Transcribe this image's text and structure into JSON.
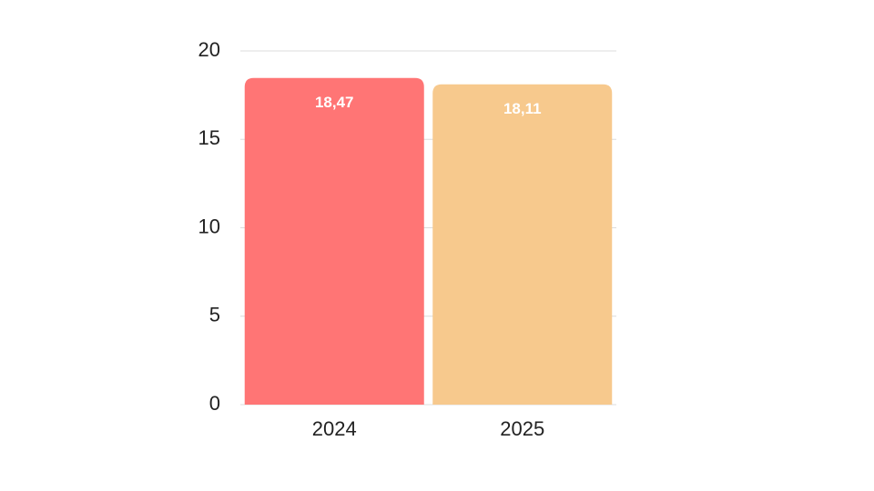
{
  "chart_data": {
    "type": "bar",
    "categories": [
      "2024",
      "2025"
    ],
    "values": [
      18.47,
      18.11
    ],
    "value_labels": [
      "18,47",
      "18,11"
    ],
    "colors": [
      "#ff7575",
      "#f7c98d"
    ],
    "ylim": [
      0,
      20
    ],
    "yticks": [
      0,
      5,
      10,
      15,
      20
    ],
    "grid": true
  }
}
